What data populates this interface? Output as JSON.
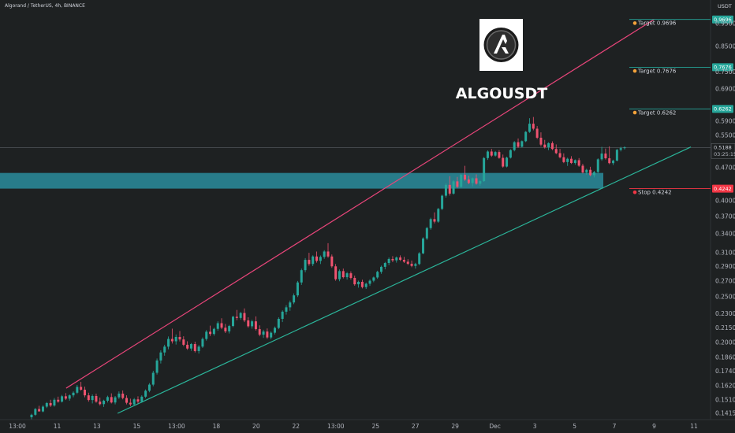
{
  "chart_data": {
    "type": "candlestick",
    "header": "Algorand / TetherUS, 4h, BINANCE",
    "symbol": "ALGOUSDT",
    "currency": "USDT",
    "y_axis": {
      "scale": "log",
      "ticks": [
        "0.9500",
        "0.8500",
        "0.7500",
        "0.6900",
        "0.5900",
        "0.5500",
        "0.4700",
        "0.4000",
        "0.3700",
        "0.3400",
        "0.3100",
        "0.2900",
        "0.2700",
        "0.2500",
        "0.2300",
        "0.2150",
        "0.2000",
        "0.1860",
        "0.1740",
        "0.1620",
        "0.1510",
        "0.1415"
      ]
    },
    "x_axis": {
      "ticks": [
        "13:00",
        "11",
        "13",
        "15",
        "13:00",
        "18",
        "20",
        "22",
        "13:00",
        "25",
        "27",
        "29",
        "Dec",
        "3",
        "5",
        "7",
        "9",
        "11"
      ]
    },
    "last_price": {
      "value": "0.5188",
      "countdown": "03:25:15"
    },
    "levels": [
      {
        "kind": "target",
        "label": "Target 0.9696",
        "value": 0.9696,
        "badge": "0.9696",
        "color": "#26a69a"
      },
      {
        "kind": "target",
        "label": "Target 0.7676",
        "value": 0.7676,
        "badge": "0.7676",
        "color": "#26a69a"
      },
      {
        "kind": "target",
        "label": "Target 0.6262",
        "value": 0.6262,
        "badge": "0.6262",
        "color": "#26a69a"
      },
      {
        "kind": "stop",
        "label": "Stop 0.4242",
        "value": 0.4242,
        "badge": "0.4242",
        "color": "#f23645"
      }
    ],
    "support_zone": {
      "low": 0.4242,
      "high": 0.458,
      "color": "#2a8c9c"
    },
    "channel": {
      "upper": [
        [
          0.09,
          0.16
        ],
        [
          0.89,
          0.97
        ]
      ],
      "lower": [
        [
          0.16,
          0.1415
        ],
        [
          0.94,
          0.52
        ]
      ]
    },
    "colors": {
      "up": "#26a69a",
      "down": "#ef5370",
      "upper_line": "#e8457a",
      "lower_line": "#2bb59a",
      "background": "#1e2122"
    },
    "candles": [
      {
        "o": 0.1388,
        "h": 0.1412,
        "l": 0.1375,
        "c": 0.1405
      },
      {
        "o": 0.1405,
        "h": 0.1452,
        "l": 0.1398,
        "c": 0.1445
      },
      {
        "o": 0.1445,
        "h": 0.1468,
        "l": 0.1435,
        "c": 0.1428
      },
      {
        "o": 0.1428,
        "h": 0.1472,
        "l": 0.1422,
        "c": 0.1462
      },
      {
        "o": 0.1462,
        "h": 0.1495,
        "l": 0.1452,
        "c": 0.1488
      },
      {
        "o": 0.1488,
        "h": 0.1512,
        "l": 0.146,
        "c": 0.147
      },
      {
        "o": 0.147,
        "h": 0.1525,
        "l": 0.1462,
        "c": 0.1512
      },
      {
        "o": 0.1512,
        "h": 0.1535,
        "l": 0.149,
        "c": 0.1498
      },
      {
        "o": 0.1498,
        "h": 0.1548,
        "l": 0.1492,
        "c": 0.1538
      },
      {
        "o": 0.1538,
        "h": 0.1562,
        "l": 0.151,
        "c": 0.152
      },
      {
        "o": 0.152,
        "h": 0.1552,
        "l": 0.1505,
        "c": 0.1545
      },
      {
        "o": 0.1545,
        "h": 0.1575,
        "l": 0.153,
        "c": 0.1565
      },
      {
        "o": 0.1565,
        "h": 0.1625,
        "l": 0.1555,
        "c": 0.161
      },
      {
        "o": 0.161,
        "h": 0.165,
        "l": 0.158,
        "c": 0.1588
      },
      {
        "o": 0.1588,
        "h": 0.1612,
        "l": 0.153,
        "c": 0.1545
      },
      {
        "o": 0.1545,
        "h": 0.1565,
        "l": 0.1498,
        "c": 0.151
      },
      {
        "o": 0.151,
        "h": 0.1552,
        "l": 0.1485,
        "c": 0.154
      },
      {
        "o": 0.154,
        "h": 0.1558,
        "l": 0.149,
        "c": 0.1498
      },
      {
        "o": 0.1498,
        "h": 0.1528,
        "l": 0.147,
        "c": 0.148
      },
      {
        "o": 0.148,
        "h": 0.1512,
        "l": 0.146,
        "c": 0.1505
      },
      {
        "o": 0.1505,
        "h": 0.1542,
        "l": 0.1492,
        "c": 0.1532
      },
      {
        "o": 0.1532,
        "h": 0.156,
        "l": 0.1485,
        "c": 0.1492
      },
      {
        "o": 0.1492,
        "h": 0.154,
        "l": 0.1478,
        "c": 0.153
      },
      {
        "o": 0.153,
        "h": 0.1575,
        "l": 0.1518,
        "c": 0.1558
      },
      {
        "o": 0.1558,
        "h": 0.1582,
        "l": 0.1515,
        "c": 0.1525
      },
      {
        "o": 0.1525,
        "h": 0.1545,
        "l": 0.1478,
        "c": 0.149
      },
      {
        "o": 0.149,
        "h": 0.152,
        "l": 0.1465,
        "c": 0.1478
      },
      {
        "o": 0.1478,
        "h": 0.1525,
        "l": 0.147,
        "c": 0.1515
      },
      {
        "o": 0.1515,
        "h": 0.1538,
        "l": 0.1485,
        "c": 0.1498
      },
      {
        "o": 0.1498,
        "h": 0.1545,
        "l": 0.149,
        "c": 0.1535
      },
      {
        "o": 0.1535,
        "h": 0.159,
        "l": 0.1525,
        "c": 0.158
      },
      {
        "o": 0.158,
        "h": 0.164,
        "l": 0.1568,
        "c": 0.1628
      },
      {
        "o": 0.1628,
        "h": 0.1742,
        "l": 0.1615,
        "c": 0.1725
      },
      {
        "o": 0.1725,
        "h": 0.185,
        "l": 0.171,
        "c": 0.1832
      },
      {
        "o": 0.1832,
        "h": 0.1925,
        "l": 0.1805,
        "c": 0.1905
      },
      {
        "o": 0.1905,
        "h": 0.1978,
        "l": 0.1875,
        "c": 0.196
      },
      {
        "o": 0.196,
        "h": 0.206,
        "l": 0.1935,
        "c": 0.2035
      },
      {
        "o": 0.2035,
        "h": 0.214,
        "l": 0.199,
        "c": 0.2012
      },
      {
        "o": 0.2012,
        "h": 0.208,
        "l": 0.198,
        "c": 0.2055
      },
      {
        "o": 0.2055,
        "h": 0.2115,
        "l": 0.201,
        "c": 0.203
      },
      {
        "o": 0.203,
        "h": 0.2062,
        "l": 0.1965,
        "c": 0.1978
      },
      {
        "o": 0.1978,
        "h": 0.2012,
        "l": 0.193,
        "c": 0.1942
      },
      {
        "o": 0.1942,
        "h": 0.1995,
        "l": 0.192,
        "c": 0.1985
      },
      {
        "o": 0.1985,
        "h": 0.2008,
        "l": 0.1905,
        "c": 0.1918
      },
      {
        "o": 0.1918,
        "h": 0.1975,
        "l": 0.1895,
        "c": 0.196
      },
      {
        "o": 0.196,
        "h": 0.205,
        "l": 0.1948,
        "c": 0.2035
      },
      {
        "o": 0.2035,
        "h": 0.2125,
        "l": 0.2018,
        "c": 0.2108
      },
      {
        "o": 0.2108,
        "h": 0.2172,
        "l": 0.2065,
        "c": 0.2085
      },
      {
        "o": 0.2085,
        "h": 0.215,
        "l": 0.2068,
        "c": 0.2138
      },
      {
        "o": 0.2138,
        "h": 0.2218,
        "l": 0.2118,
        "c": 0.2198
      },
      {
        "o": 0.2198,
        "h": 0.2252,
        "l": 0.2135,
        "c": 0.215
      },
      {
        "o": 0.215,
        "h": 0.219,
        "l": 0.2095,
        "c": 0.2112
      },
      {
        "o": 0.2112,
        "h": 0.218,
        "l": 0.209,
        "c": 0.2168
      },
      {
        "o": 0.2168,
        "h": 0.228,
        "l": 0.2155,
        "c": 0.2268
      },
      {
        "o": 0.2268,
        "h": 0.2345,
        "l": 0.223,
        "c": 0.2255
      },
      {
        "o": 0.2255,
        "h": 0.2322,
        "l": 0.2235,
        "c": 0.231
      },
      {
        "o": 0.231,
        "h": 0.2362,
        "l": 0.221,
        "c": 0.2228
      },
      {
        "o": 0.2228,
        "h": 0.2262,
        "l": 0.215,
        "c": 0.2165
      },
      {
        "o": 0.2165,
        "h": 0.2235,
        "l": 0.214,
        "c": 0.2218
      },
      {
        "o": 0.2218,
        "h": 0.2272,
        "l": 0.212,
        "c": 0.2135
      },
      {
        "o": 0.2135,
        "h": 0.2175,
        "l": 0.2062,
        "c": 0.2078
      },
      {
        "o": 0.2078,
        "h": 0.2128,
        "l": 0.2045,
        "c": 0.211
      },
      {
        "o": 0.211,
        "h": 0.2142,
        "l": 0.2035,
        "c": 0.205
      },
      {
        "o": 0.205,
        "h": 0.2112,
        "l": 0.2032,
        "c": 0.2098
      },
      {
        "o": 0.2098,
        "h": 0.2162,
        "l": 0.208,
        "c": 0.2148
      },
      {
        "o": 0.2148,
        "h": 0.2262,
        "l": 0.2135,
        "c": 0.2245
      },
      {
        "o": 0.2245,
        "h": 0.234,
        "l": 0.221,
        "c": 0.2325
      },
      {
        "o": 0.2325,
        "h": 0.24,
        "l": 0.2292,
        "c": 0.2375
      },
      {
        "o": 0.2375,
        "h": 0.2455,
        "l": 0.2335,
        "c": 0.2432
      },
      {
        "o": 0.2432,
        "h": 0.2542,
        "l": 0.2412,
        "c": 0.2518
      },
      {
        "o": 0.2518,
        "h": 0.2702,
        "l": 0.2498,
        "c": 0.2682
      },
      {
        "o": 0.2682,
        "h": 0.287,
        "l": 0.265,
        "c": 0.2848
      },
      {
        "o": 0.2848,
        "h": 0.302,
        "l": 0.2818,
        "c": 0.2995
      },
      {
        "o": 0.2995,
        "h": 0.31,
        "l": 0.291,
        "c": 0.2935
      },
      {
        "o": 0.2935,
        "h": 0.3062,
        "l": 0.2905,
        "c": 0.3045
      },
      {
        "o": 0.3045,
        "h": 0.312,
        "l": 0.2955,
        "c": 0.298
      },
      {
        "o": 0.298,
        "h": 0.306,
        "l": 0.2935,
        "c": 0.3038
      },
      {
        "o": 0.3038,
        "h": 0.314,
        "l": 0.301,
        "c": 0.312
      },
      {
        "o": 0.312,
        "h": 0.325,
        "l": 0.3025,
        "c": 0.3045
      },
      {
        "o": 0.3045,
        "h": 0.3075,
        "l": 0.288,
        "c": 0.2902
      },
      {
        "o": 0.2902,
        "h": 0.2935,
        "l": 0.2705,
        "c": 0.2725
      },
      {
        "o": 0.2725,
        "h": 0.2858,
        "l": 0.2698,
        "c": 0.2835
      },
      {
        "o": 0.2835,
        "h": 0.287,
        "l": 0.2735,
        "c": 0.2752
      },
      {
        "o": 0.2752,
        "h": 0.2822,
        "l": 0.272,
        "c": 0.2805
      },
      {
        "o": 0.2805,
        "h": 0.2832,
        "l": 0.272,
        "c": 0.2742
      },
      {
        "o": 0.2742,
        "h": 0.2772,
        "l": 0.264,
        "c": 0.2658
      },
      {
        "o": 0.2658,
        "h": 0.2705,
        "l": 0.2615,
        "c": 0.269
      },
      {
        "o": 0.269,
        "h": 0.2718,
        "l": 0.2605,
        "c": 0.2622
      },
      {
        "o": 0.2622,
        "h": 0.268,
        "l": 0.2598,
        "c": 0.2665
      },
      {
        "o": 0.2665,
        "h": 0.2722,
        "l": 0.2638,
        "c": 0.2705
      },
      {
        "o": 0.2705,
        "h": 0.276,
        "l": 0.2685,
        "c": 0.2748
      },
      {
        "o": 0.2748,
        "h": 0.284,
        "l": 0.273,
        "c": 0.2825
      },
      {
        "o": 0.2825,
        "h": 0.2912,
        "l": 0.2798,
        "c": 0.2895
      },
      {
        "o": 0.2895,
        "h": 0.2965,
        "l": 0.286,
        "c": 0.295
      },
      {
        "o": 0.295,
        "h": 0.303,
        "l": 0.2918,
        "c": 0.3008
      },
      {
        "o": 0.3008,
        "h": 0.305,
        "l": 0.2962,
        "c": 0.2988
      },
      {
        "o": 0.2988,
        "h": 0.3045,
        "l": 0.2955,
        "c": 0.303
      },
      {
        "o": 0.303,
        "h": 0.3062,
        "l": 0.2978,
        "c": 0.2995
      },
      {
        "o": 0.2995,
        "h": 0.304,
        "l": 0.295,
        "c": 0.2968
      },
      {
        "o": 0.2968,
        "h": 0.3005,
        "l": 0.292,
        "c": 0.2938
      },
      {
        "o": 0.2938,
        "h": 0.2985,
        "l": 0.289,
        "c": 0.2908
      },
      {
        "o": 0.2908,
        "h": 0.2952,
        "l": 0.287,
        "c": 0.2935
      },
      {
        "o": 0.2935,
        "h": 0.311,
        "l": 0.2918,
        "c": 0.3092
      },
      {
        "o": 0.3092,
        "h": 0.3345,
        "l": 0.3078,
        "c": 0.3325
      },
      {
        "o": 0.3325,
        "h": 0.352,
        "l": 0.33,
        "c": 0.3498
      },
      {
        "o": 0.3498,
        "h": 0.368,
        "l": 0.347,
        "c": 0.3655
      },
      {
        "o": 0.3655,
        "h": 0.3778,
        "l": 0.358,
        "c": 0.361
      },
      {
        "o": 0.361,
        "h": 0.386,
        "l": 0.359,
        "c": 0.3842
      },
      {
        "o": 0.3842,
        "h": 0.412,
        "l": 0.382,
        "c": 0.4098
      },
      {
        "o": 0.4098,
        "h": 0.435,
        "l": 0.406,
        "c": 0.432
      },
      {
        "o": 0.432,
        "h": 0.4508,
        "l": 0.41,
        "c": 0.414
      },
      {
        "o": 0.414,
        "h": 0.442,
        "l": 0.4118,
        "c": 0.4395
      },
      {
        "o": 0.4395,
        "h": 0.4492,
        "l": 0.4255,
        "c": 0.428
      },
      {
        "o": 0.428,
        "h": 0.456,
        "l": 0.4262,
        "c": 0.4538
      },
      {
        "o": 0.4538,
        "h": 0.4742,
        "l": 0.4405,
        "c": 0.4435
      },
      {
        "o": 0.4435,
        "h": 0.452,
        "l": 0.4335,
        "c": 0.436
      },
      {
        "o": 0.436,
        "h": 0.448,
        "l": 0.429,
        "c": 0.4462
      },
      {
        "o": 0.4462,
        "h": 0.4548,
        "l": 0.4325,
        "c": 0.4345
      },
      {
        "o": 0.4345,
        "h": 0.4422,
        "l": 0.43,
        "c": 0.44
      },
      {
        "o": 0.44,
        "h": 0.495,
        "l": 0.4385,
        "c": 0.4925
      },
      {
        "o": 0.4925,
        "h": 0.5115,
        "l": 0.488,
        "c": 0.5085
      },
      {
        "o": 0.5085,
        "h": 0.515,
        "l": 0.4955,
        "c": 0.4985
      },
      {
        "o": 0.4985,
        "h": 0.5098,
        "l": 0.496,
        "c": 0.5072
      },
      {
        "o": 0.5072,
        "h": 0.512,
        "l": 0.4908,
        "c": 0.493
      },
      {
        "o": 0.493,
        "h": 0.501,
        "l": 0.47,
        "c": 0.4725
      },
      {
        "o": 0.4725,
        "h": 0.496,
        "l": 0.4705,
        "c": 0.4935
      },
      {
        "o": 0.4935,
        "h": 0.5142,
        "l": 0.4915,
        "c": 0.512
      },
      {
        "o": 0.512,
        "h": 0.535,
        "l": 0.509,
        "c": 0.5322
      },
      {
        "o": 0.5322,
        "h": 0.542,
        "l": 0.5175,
        "c": 0.5205
      },
      {
        "o": 0.5205,
        "h": 0.5368,
        "l": 0.5182,
        "c": 0.5348
      },
      {
        "o": 0.5348,
        "h": 0.562,
        "l": 0.5325,
        "c": 0.5598
      },
      {
        "o": 0.5598,
        "h": 0.5985,
        "l": 0.557,
        "c": 0.5825
      },
      {
        "o": 0.5825,
        "h": 0.602,
        "l": 0.564,
        "c": 0.5685
      },
      {
        "o": 0.5685,
        "h": 0.576,
        "l": 0.5405,
        "c": 0.544
      },
      {
        "o": 0.544,
        "h": 0.5585,
        "l": 0.5215,
        "c": 0.526
      },
      {
        "o": 0.526,
        "h": 0.5382,
        "l": 0.516,
        "c": 0.519
      },
      {
        "o": 0.519,
        "h": 0.532,
        "l": 0.512,
        "c": 0.5298
      },
      {
        "o": 0.5298,
        "h": 0.5345,
        "l": 0.512,
        "c": 0.5148
      },
      {
        "o": 0.5148,
        "h": 0.5265,
        "l": 0.502,
        "c": 0.5045
      },
      {
        "o": 0.5045,
        "h": 0.515,
        "l": 0.4918,
        "c": 0.4945
      },
      {
        "o": 0.4945,
        "h": 0.504,
        "l": 0.4805,
        "c": 0.483
      },
      {
        "o": 0.483,
        "h": 0.4935,
        "l": 0.474,
        "c": 0.4908
      },
      {
        "o": 0.4908,
        "h": 0.4972,
        "l": 0.4785,
        "c": 0.4808
      },
      {
        "o": 0.4808,
        "h": 0.4892,
        "l": 0.4768,
        "c": 0.4875
      },
      {
        "o": 0.4875,
        "h": 0.4925,
        "l": 0.472,
        "c": 0.4745
      },
      {
        "o": 0.4745,
        "h": 0.479,
        "l": 0.4568,
        "c": 0.459
      },
      {
        "o": 0.459,
        "h": 0.4675,
        "l": 0.454,
        "c": 0.465
      },
      {
        "o": 0.465,
        "h": 0.472,
        "l": 0.4505,
        "c": 0.453
      },
      {
        "o": 0.453,
        "h": 0.4625,
        "l": 0.448,
        "c": 0.46
      },
      {
        "o": 0.46,
        "h": 0.492,
        "l": 0.458,
        "c": 0.4895
      },
      {
        "o": 0.4895,
        "h": 0.5202,
        "l": 0.486,
        "c": 0.5035
      },
      {
        "o": 0.5035,
        "h": 0.516,
        "l": 0.489,
        "c": 0.492
      },
      {
        "o": 0.492,
        "h": 0.5215,
        "l": 0.478,
        "c": 0.4805
      },
      {
        "o": 0.4805,
        "h": 0.4885,
        "l": 0.476,
        "c": 0.4865
      },
      {
        "o": 0.4865,
        "h": 0.515,
        "l": 0.4845,
        "c": 0.5128
      },
      {
        "o": 0.5128,
        "h": 0.5205,
        "l": 0.5088,
        "c": 0.517
      },
      {
        "o": 0.517,
        "h": 0.5215,
        "l": 0.5135,
        "c": 0.5188
      }
    ]
  }
}
